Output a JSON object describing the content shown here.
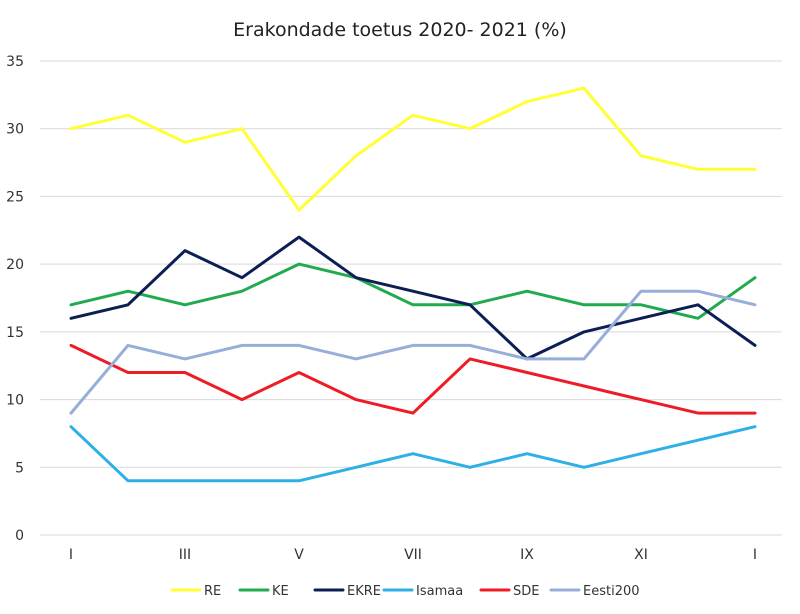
{
  "chart_data": {
    "type": "line",
    "title": "Erakondade toetus 2020- 2021 (%)",
    "xlabel": "",
    "ylabel": "",
    "ylim": [
      0,
      35
    ],
    "yticks": [
      0,
      5,
      10,
      15,
      20,
      25,
      30,
      35
    ],
    "grid": true,
    "legend_position": "bottom",
    "categories": [
      "I",
      "",
      "III",
      "",
      "V",
      "",
      "VII",
      "",
      "IX",
      "",
      "XI",
      "",
      "I"
    ],
    "series": [
      {
        "name": "RE",
        "color": "#ffff33",
        "values": [
          30,
          31,
          29,
          30,
          24,
          28,
          31,
          30,
          32,
          33,
          28,
          27,
          27
        ]
      },
      {
        "name": "KE",
        "color": "#22aa4f",
        "values": [
          17,
          18,
          17,
          18,
          20,
          19,
          17,
          17,
          18,
          17,
          17,
          16,
          19
        ]
      },
      {
        "name": "EKRE",
        "color": "#0c1f55",
        "values": [
          16,
          17,
          21,
          19,
          22,
          19,
          18,
          17,
          13,
          15,
          16,
          17,
          14
        ]
      },
      {
        "name": "Isamaa",
        "color": "#2eb0e6",
        "values": [
          8,
          4,
          4,
          4,
          4,
          5,
          6,
          5,
          6,
          5,
          6,
          7,
          8
        ]
      },
      {
        "name": "SDE",
        "color": "#ee1c25",
        "values": [
          14,
          12,
          12,
          10,
          12,
          10,
          9,
          13,
          12,
          11,
          10,
          9,
          9
        ]
      },
      {
        "name": "Eesti200",
        "color": "#97aed9",
        "values": [
          9,
          14,
          13,
          14,
          14,
          13,
          14,
          14,
          13,
          13,
          18,
          18,
          17
        ]
      }
    ]
  }
}
